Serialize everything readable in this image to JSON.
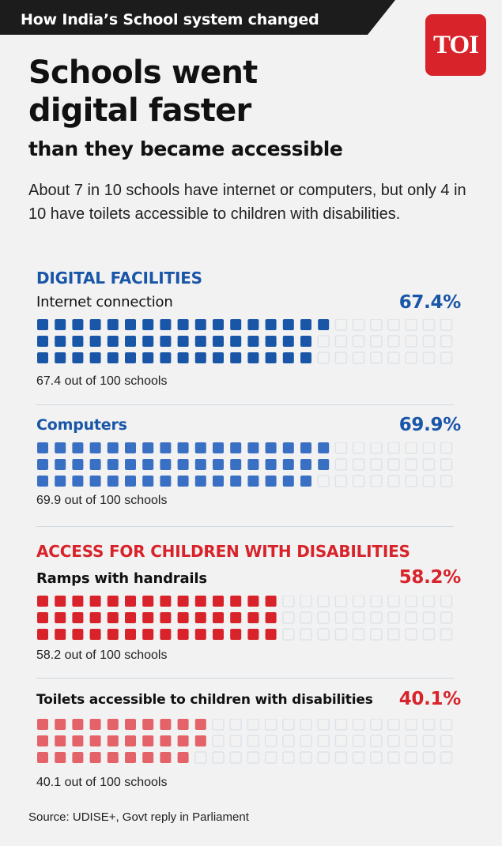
{
  "header": {
    "topbar_title": "How India’s School system changed",
    "logo": "TOI"
  },
  "headline": {
    "line1": "Schools went",
    "line2": "digital faster",
    "subhead": "than they became accessible"
  },
  "intro": "About 7 in 10 schools have internet or computers, but only 4 in 10 have toilets accessible to children with disabilities.",
  "sections": [
    {
      "title": "DIGITAL FACILITIES"
    },
    {
      "title": "ACCESS FOR CHILDREN WITH DISABILITIES"
    }
  ],
  "source": "Source: UDISE+, Govt reply in Parliament",
  "colors": {
    "blue": "#1a56a8",
    "blue_light": "#3a70c4",
    "red": "#d8232a",
    "red_light": "#e36368",
    "empty": "#dde3ea"
  },
  "chart_data": [
    {
      "type": "bar",
      "unit": "out of 100 schools",
      "category": "Internet connection",
      "value": 67.4,
      "value_label": "67.4%",
      "caption": "67.4 out of 100 schools",
      "max": 100,
      "color": "#1a56a8"
    },
    {
      "type": "bar",
      "unit": "out of 100 schools",
      "category": "Computers",
      "value": 69.9,
      "value_label": "69.9%",
      "caption": "69.9 out of 100 schools",
      "max": 100,
      "color": "#3a70c4"
    },
    {
      "type": "bar",
      "unit": "out of 100 schools",
      "category": "Ramps with handrails",
      "value": 58.2,
      "value_label": "58.2%",
      "caption": "58.2 out of 100 schools",
      "max": 100,
      "color": "#d8232a"
    },
    {
      "type": "bar",
      "unit": "out of 100 schools",
      "category": "Toilets accessible to children with disabilities",
      "value": 40.1,
      "value_label": "40.1%",
      "caption": "40.1 out of 100 schools",
      "max": 100,
      "color": "#e36368"
    }
  ]
}
